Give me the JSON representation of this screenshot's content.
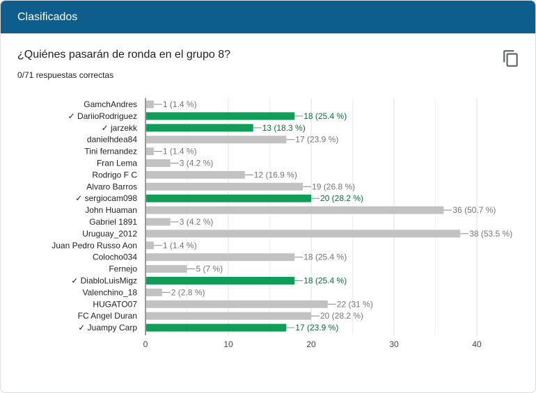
{
  "header": {
    "title": "Clasificados"
  },
  "question": {
    "title": "¿Quiénes pasarán de ronda en el grupo 8?",
    "subtitle": "0/71 respuestas correctas"
  },
  "icons": {
    "copy": "copy-icon"
  },
  "colors": {
    "header": "#0d5e8c",
    "correct": "#0f9d58",
    "incorrect": "#c2c2c2",
    "correct_text": "#0b6b3a"
  },
  "chart_data": {
    "type": "bar",
    "orientation": "horizontal",
    "categories": [
      {
        "name": "GamchAndres",
        "value": 1,
        "percent": "1.4 %",
        "correct": false
      },
      {
        "name": "DariioRodriguez",
        "value": 18,
        "percent": "25.4 %",
        "correct": true
      },
      {
        "name": "jarzekk",
        "value": 13,
        "percent": "18.3 %",
        "correct": true
      },
      {
        "name": "danielhdea84",
        "value": 17,
        "percent": "23.9 %",
        "correct": false
      },
      {
        "name": "Tini fernandez",
        "value": 1,
        "percent": "1.4 %",
        "correct": false
      },
      {
        "name": "Fran Lema",
        "value": 3,
        "percent": "4.2 %",
        "correct": false
      },
      {
        "name": "Rodrigo F C",
        "value": 12,
        "percent": "16.9 %",
        "correct": false
      },
      {
        "name": "Alvaro Barros",
        "value": 19,
        "percent": "26.8 %",
        "correct": false
      },
      {
        "name": "sergiocam098",
        "value": 20,
        "percent": "28.2 %",
        "correct": true
      },
      {
        "name": "John Huaman",
        "value": 36,
        "percent": "50.7 %",
        "correct": false
      },
      {
        "name": "Gabriel 1891",
        "value": 3,
        "percent": "4.2 %",
        "correct": false
      },
      {
        "name": "Uruguay_2012",
        "value": 38,
        "percent": "53.5 %",
        "correct": false
      },
      {
        "name": "Juan Pedro Russo Aon",
        "value": 1,
        "percent": "1.4 %",
        "correct": false
      },
      {
        "name": "Colocho034",
        "value": 18,
        "percent": "25.4 %",
        "correct": false
      },
      {
        "name": "Fernejo",
        "value": 5,
        "percent": "7 %",
        "correct": false
      },
      {
        "name": "DiabloLuisMigz",
        "value": 18,
        "percent": "25.4 %",
        "correct": true
      },
      {
        "name": "Valenchino_18",
        "value": 2,
        "percent": "2.8 %",
        "correct": false
      },
      {
        "name": "HUGATO07",
        "value": 22,
        "percent": "31 %",
        "correct": false
      },
      {
        "name": "FC Angel Duran",
        "value": 20,
        "percent": "28.2 %",
        "correct": false
      },
      {
        "name": "Juampy Carp",
        "value": 17,
        "percent": "23.9 %",
        "correct": true
      }
    ],
    "correct_marker": "✓",
    "xlim": [
      0,
      40
    ],
    "xticks": [
      0,
      10,
      20,
      30,
      40
    ],
    "grid": true
  }
}
